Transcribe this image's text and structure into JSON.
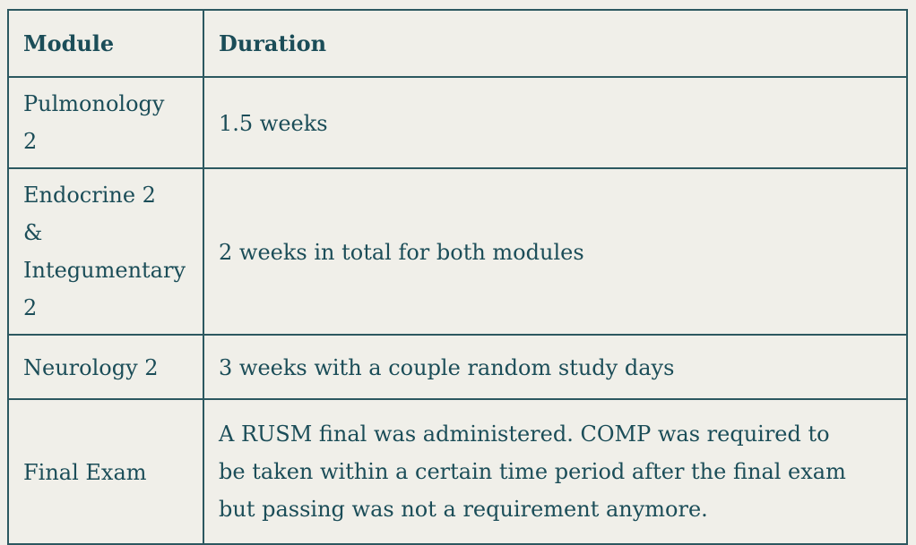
{
  "theme": {
    "page_background": "#f0efe9",
    "text_color": "#1b4d58",
    "border_color": "#2c5860"
  },
  "table": {
    "columns": [
      {
        "label": "Module"
      },
      {
        "label": "Duration"
      }
    ],
    "rows": [
      {
        "module": "Pulmonology 2",
        "duration": "1.5 weeks"
      },
      {
        "module": "Endocrine 2 & Integumentary 2",
        "duration": "2 weeks in total for both modules"
      },
      {
        "module": "Neurology 2",
        "duration": "3 weeks with a couple random study days"
      },
      {
        "module": "Final Exam",
        "duration": "A RUSM final was administered. COMP was required to be taken within a certain time period after the final exam but passing was not a requirement anymore."
      }
    ]
  }
}
